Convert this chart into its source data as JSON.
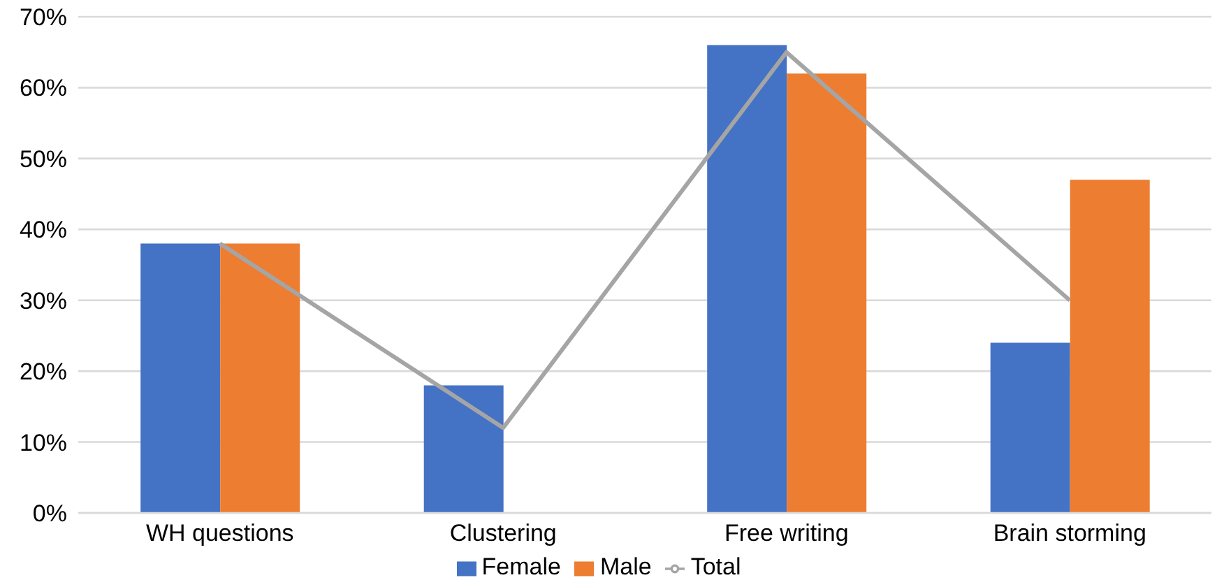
{
  "chart_data": {
    "type": "bar",
    "categories": [
      "WH questions",
      "Clustering",
      "Free writing",
      "Brain storming"
    ],
    "series": [
      {
        "name": "Female",
        "color": "#4472c4",
        "values": [
          38,
          18,
          66,
          24
        ]
      },
      {
        "name": "Male",
        "color": "#ed7d31",
        "values": [
          38,
          0,
          62,
          47
        ]
      },
      {
        "name": "Total",
        "type": "line",
        "color": "#a5a5a5",
        "values": [
          38,
          12,
          65,
          30
        ]
      }
    ],
    "ylim": [
      0,
      70
    ],
    "yticks": [
      {
        "value": 0,
        "label": "0%"
      },
      {
        "value": 10,
        "label": "10%"
      },
      {
        "value": 20,
        "label": "20%"
      },
      {
        "value": 30,
        "label": "30%"
      },
      {
        "value": 40,
        "label": "40%"
      },
      {
        "value": 50,
        "label": "50%"
      },
      {
        "value": 60,
        "label": "60%"
      },
      {
        "value": 70,
        "label": "70%"
      }
    ],
    "grid": "y",
    "legend": "bottom",
    "marker": "none"
  }
}
